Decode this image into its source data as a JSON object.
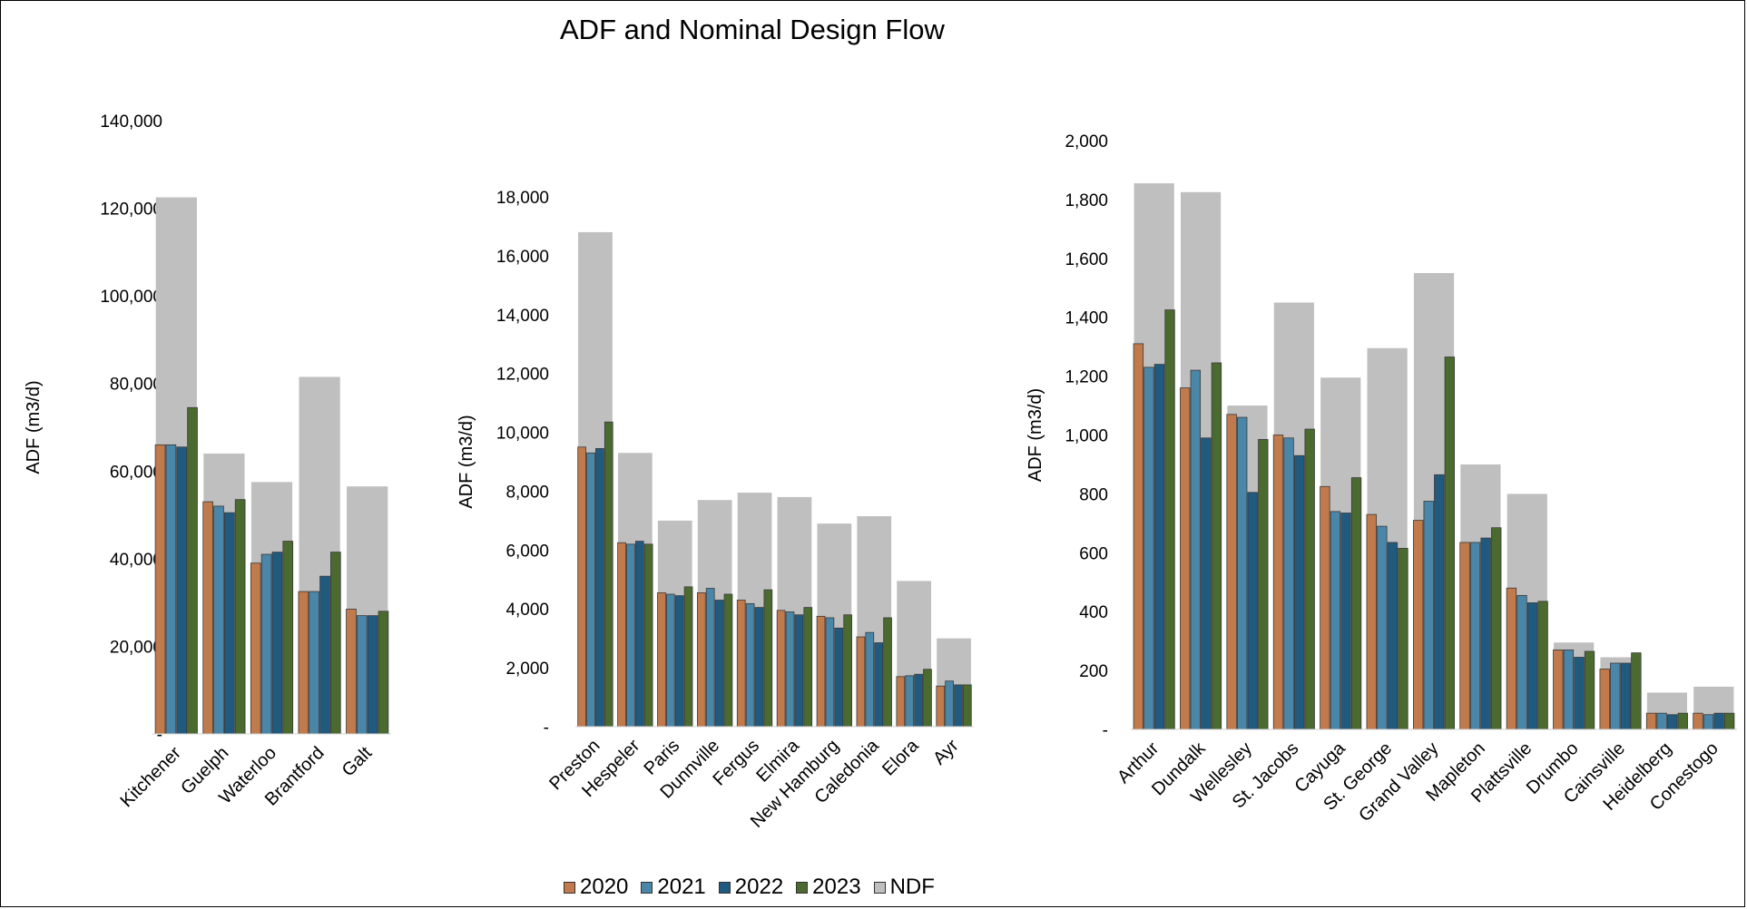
{
  "title": "ADF and Nominal Design Flow",
  "legend": [
    {
      "label": "2020",
      "color": "#c07a4b"
    },
    {
      "label": "2021",
      "color": "#4a86a8"
    },
    {
      "label": "2022",
      "color": "#215a7f"
    },
    {
      "label": "2023",
      "color": "#4a6a30"
    },
    {
      "label": "NDF",
      "color": "#bfbfbf"
    }
  ],
  "chart_data": [
    {
      "type": "bar",
      "title": "ADF and Nominal Design Flow",
      "ylabel": "ADF (m3/d)",
      "ylim": [
        0,
        140000
      ],
      "yticks": [
        "-",
        "20,000",
        "40,000",
        "60,000",
        "80,000",
        "100,000",
        "120,000",
        "140,000"
      ],
      "categories": [
        "Kitchener",
        "Guelph",
        "Waterloo",
        "Brantford",
        "Galt"
      ],
      "series": [
        {
          "name": "2020",
          "values": [
            66000,
            53000,
            39000,
            32500,
            28500
          ]
        },
        {
          "name": "2021",
          "values": [
            66000,
            52000,
            41000,
            32500,
            27000
          ]
        },
        {
          "name": "2022",
          "values": [
            65500,
            50500,
            41500,
            36000,
            27000
          ]
        },
        {
          "name": "2023",
          "values": [
            74500,
            53500,
            44000,
            41500,
            28000
          ]
        },
        {
          "name": "NDF",
          "values": [
            122500,
            64000,
            57500,
            81500,
            56500
          ]
        }
      ]
    },
    {
      "type": "bar",
      "ylabel": "ADF (m3/d)",
      "ylim": [
        0,
        18000
      ],
      "yticks": [
        "-",
        "2,000",
        "4,000",
        "6,000",
        "8,000",
        "10,000",
        "12,000",
        "14,000",
        "16,000",
        "18,000"
      ],
      "categories": [
        "Preston",
        "Hespeler",
        "Paris",
        "Dunnville",
        "Fergus",
        "Elmira",
        "New Hamburg",
        "Caledonia",
        "Elora",
        "Ayr"
      ],
      "series": [
        {
          "name": "2020",
          "values": [
            9500,
            6250,
            4550,
            4550,
            4300,
            3950,
            3750,
            3050,
            1700,
            1380
          ]
        },
        {
          "name": "2021",
          "values": [
            9300,
            6200,
            4500,
            4700,
            4180,
            3900,
            3700,
            3200,
            1730,
            1550
          ]
        },
        {
          "name": "2022",
          "values": [
            9450,
            6300,
            4450,
            4300,
            4050,
            3800,
            3350,
            2850,
            1780,
            1420
          ]
        },
        {
          "name": "2023",
          "values": [
            10350,
            6200,
            4750,
            4500,
            4650,
            4050,
            3800,
            3700,
            1950,
            1420
          ]
        },
        {
          "name": "NDF",
          "values": [
            16800,
            9300,
            7000,
            7700,
            7950,
            7800,
            6900,
            7150,
            4950,
            3000
          ]
        }
      ]
    },
    {
      "type": "bar",
      "ylabel": "ADF (m3/d)",
      "ylim": [
        0,
        2000
      ],
      "yticks": [
        "-",
        "200",
        "400",
        "600",
        "800",
        "1,000",
        "1,200",
        "1,400",
        "1,600",
        "1,800",
        "2,000"
      ],
      "categories": [
        "Arthur",
        "Dundalk",
        "Wellesley",
        "St. Jacobs",
        "Cayuga",
        "St. George",
        "Grand Valley",
        "Mapleton",
        "Plattsville",
        "Drumbo",
        "Cainsville",
        "Heidelberg",
        "Conestogo"
      ],
      "series": [
        {
          "name": "2020",
          "values": [
            1310,
            1160,
            1070,
            1000,
            825,
            730,
            710,
            635,
            480,
            270,
            205,
            55,
            55
          ]
        },
        {
          "name": "2021",
          "values": [
            1230,
            1220,
            1060,
            990,
            740,
            690,
            775,
            635,
            455,
            270,
            225,
            55,
            50
          ]
        },
        {
          "name": "2022",
          "values": [
            1240,
            990,
            805,
            930,
            735,
            635,
            865,
            650,
            430,
            245,
            225,
            50,
            55
          ]
        },
        {
          "name": "2023",
          "values": [
            1425,
            1245,
            985,
            1020,
            855,
            615,
            1265,
            685,
            435,
            265,
            260,
            55,
            55
          ]
        },
        {
          "name": "NDF",
          "values": [
            1855,
            1825,
            1100,
            1450,
            1195,
            1295,
            1550,
            900,
            800,
            295,
            245,
            125,
            145
          ]
        }
      ]
    }
  ]
}
